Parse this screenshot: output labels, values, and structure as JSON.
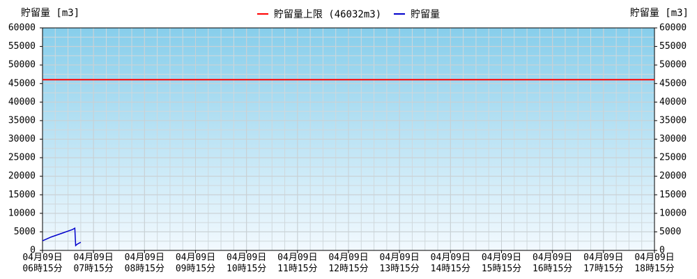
{
  "chart_data": {
    "type": "line",
    "y_label": "貯留量 [m3]",
    "y2_label": "貯留量 [m3]",
    "limit": {
      "name": "貯留量上限 (46032m3)",
      "value": 46032,
      "color": "#ff0000"
    },
    "series": [
      {
        "name": "貯留量",
        "color": "#0000cc",
        "x": [
          0,
          5,
          10,
          15,
          20,
          25,
          30,
          35,
          38,
          39,
          41,
          45
        ],
        "values": [
          2600,
          3100,
          3600,
          4000,
          4400,
          4800,
          5200,
          5600,
          6000,
          1300,
          1700,
          2200
        ]
      }
    ],
    "xlim": [
      0,
      720
    ],
    "xticks": [
      {
        "value": 0,
        "label": "04月09日\n06時15分"
      },
      {
        "value": 60,
        "label": "04月09日\n07時15分"
      },
      {
        "value": 120,
        "label": "04月09日\n08時15分"
      },
      {
        "value": 180,
        "label": "04月09日\n09時15分"
      },
      {
        "value": 240,
        "label": "04月09日\n10時15分"
      },
      {
        "value": 300,
        "label": "04月09日\n11時15分"
      },
      {
        "value": 360,
        "label": "04月09日\n12時15分"
      },
      {
        "value": 420,
        "label": "04月09日\n13時15分"
      },
      {
        "value": 480,
        "label": "04月09日\n14時15分"
      },
      {
        "value": 540,
        "label": "04月09日\n15時15分"
      },
      {
        "value": 600,
        "label": "04月09日\n16時15分"
      },
      {
        "value": 660,
        "label": "04月09日\n17時15分"
      },
      {
        "value": 720,
        "label": "04月09日\n18時15分"
      }
    ],
    "ylim": [
      0,
      60000
    ],
    "yticks": [
      0,
      5000,
      10000,
      15000,
      20000,
      25000,
      30000,
      35000,
      40000,
      45000,
      50000,
      55000,
      60000
    ],
    "y2lim": [
      0,
      60000
    ],
    "y2ticks": [
      0,
      5000,
      10000,
      15000,
      20000,
      25000,
      30000,
      35000,
      40000,
      45000,
      50000,
      55000,
      60000
    ],
    "grid": true
  }
}
